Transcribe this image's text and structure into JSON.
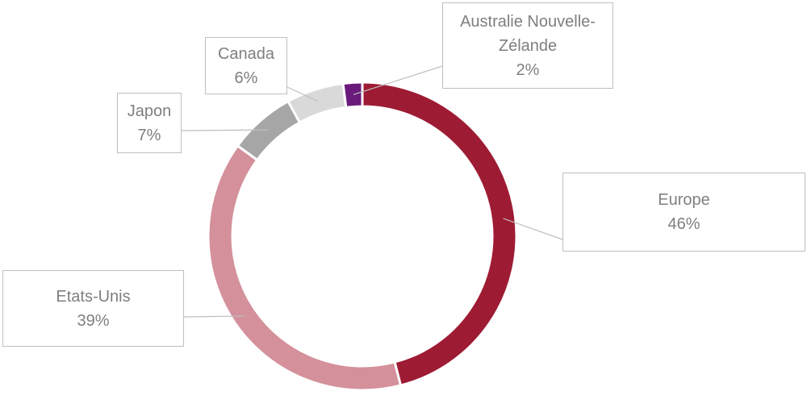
{
  "chart_data": {
    "type": "doughnut",
    "categories": [
      "Europe",
      "Etats-Unis",
      "Japon",
      "Canada",
      "Australie Nouvelle-Zélande"
    ],
    "values": [
      46,
      39,
      7,
      6,
      2
    ],
    "value_labels": [
      "46%",
      "39%",
      "7%",
      "6%",
      "2%"
    ],
    "colors": [
      "#9e1b34",
      "#d4909b",
      "#a6a6a6",
      "#d9d9d9",
      "#6a1a7a"
    ]
  }
}
